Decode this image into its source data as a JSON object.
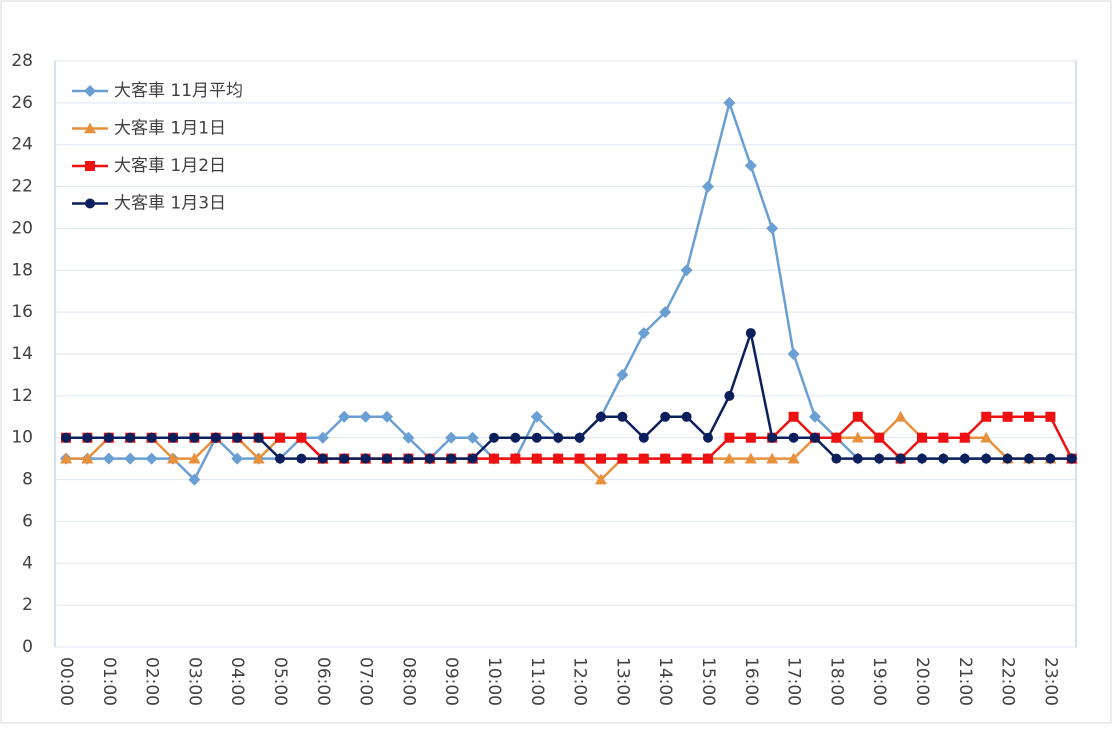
{
  "chart_data": {
    "type": "line",
    "categories": [
      "00:00",
      null,
      "01:00",
      null,
      "02:00",
      null,
      "03:00",
      null,
      "04:00",
      null,
      "05:00",
      null,
      "06:00",
      null,
      "07:00",
      null,
      "08:00",
      null,
      "09:00",
      null,
      "10:00",
      null,
      "11:00",
      null,
      "12:00",
      null,
      "13:00",
      null,
      "14:00",
      null,
      "15:00",
      null,
      "16:00",
      null,
      "17:00",
      null,
      "18:00",
      null,
      "19:00",
      null,
      "20:00",
      null,
      "21:00",
      null,
      "22:00",
      null,
      "23:00",
      null
    ],
    "series": [
      {
        "name": "大客車 11月平均",
        "color": "#6a9fd4",
        "marker": "diamond",
        "values": [
          9,
          9,
          9,
          9,
          9,
          9,
          8,
          10,
          9,
          9,
          9,
          10,
          10,
          11,
          11,
          11,
          10,
          9,
          10,
          10,
          9,
          9,
          11,
          10,
          10,
          11,
          13,
          15,
          16,
          18,
          22,
          26,
          23,
          20,
          14,
          11,
          10,
          9,
          9,
          9,
          9,
          9,
          9,
          9,
          9,
          9,
          9,
          9
        ]
      },
      {
        "name": "大客車 1月1日",
        "color": "#e8903c",
        "marker": "triangle",
        "values": [
          9,
          9,
          10,
          10,
          10,
          9,
          9,
          10,
          10,
          9,
          10,
          10,
          9,
          9,
          9,
          9,
          9,
          9,
          9,
          9,
          9,
          9,
          9,
          9,
          9,
          8,
          9,
          9,
          9,
          9,
          9,
          9,
          9,
          9,
          9,
          10,
          10,
          10,
          10,
          11,
          10,
          10,
          10,
          10,
          9,
          9,
          9,
          9
        ]
      },
      {
        "name": "大客車 1月2日",
        "color": "#ee1111",
        "marker": "square",
        "values": [
          10,
          10,
          10,
          10,
          10,
          10,
          10,
          10,
          10,
          10,
          10,
          10,
          9,
          9,
          9,
          9,
          9,
          9,
          9,
          9,
          9,
          9,
          9,
          9,
          9,
          9,
          9,
          9,
          9,
          9,
          9,
          10,
          10,
          10,
          11,
          10,
          10,
          11,
          10,
          9,
          10,
          10,
          10,
          11,
          11,
          11,
          11,
          9
        ]
      },
      {
        "name": "大客車 1月3日",
        "color": "#0b1f5c",
        "marker": "circle",
        "values": [
          10,
          10,
          10,
          10,
          10,
          10,
          10,
          10,
          10,
          10,
          9,
          9,
          9,
          9,
          9,
          9,
          9,
          9,
          9,
          9,
          10,
          10,
          10,
          10,
          10,
          11,
          11,
          10,
          11,
          11,
          10,
          12,
          15,
          10,
          10,
          10,
          9,
          9,
          9,
          9,
          9,
          9,
          9,
          9,
          9,
          9,
          9,
          9
        ]
      }
    ],
    "ylim": [
      0,
      28
    ],
    "yticks": [
      0,
      2,
      4,
      6,
      8,
      10,
      12,
      14,
      16,
      18,
      20,
      22,
      24,
      26,
      28
    ],
    "grid": true,
    "legend": "top-left"
  }
}
